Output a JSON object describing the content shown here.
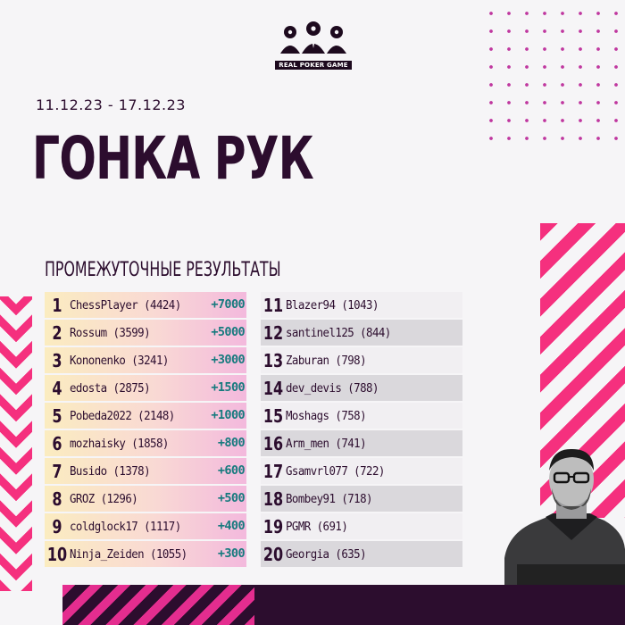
{
  "logo": {
    "text": "REAL POKER GAME"
  },
  "header": {
    "dates": "11.12.23 - 17.12.23",
    "title": "ГОНКА РУК"
  },
  "subtitle": "ПРОМЕЖУТОЧНЫЕ РЕЗУЛЬТАТЫ",
  "leaderboard_left": [
    {
      "rank": "1",
      "name": "ChessPlayer (4424)",
      "bonus": "+7000"
    },
    {
      "rank": "2",
      "name": "Rossum (3599)",
      "bonus": "+5000"
    },
    {
      "rank": "3",
      "name": "Kononenko (3241)",
      "bonus": "+3000"
    },
    {
      "rank": "4",
      "name": "edosta (2875)",
      "bonus": "+1500"
    },
    {
      "rank": "5",
      "name": "Pobeda2022 (2148)",
      "bonus": "+1000"
    },
    {
      "rank": "6",
      "name": "mozhaisky (1858)",
      "bonus": "+800"
    },
    {
      "rank": "7",
      "name": "Busido (1378)",
      "bonus": "+600"
    },
    {
      "rank": "8",
      "name": "GROZ (1296)",
      "bonus": "+500"
    },
    {
      "rank": "9",
      "name": "coldglock17 (1117)",
      "bonus": "+400"
    },
    {
      "rank": "10",
      "name": "Ninja_Zeiden (1055)",
      "bonus": "+300"
    }
  ],
  "leaderboard_right": [
    {
      "rank": "11",
      "name": "Blazer94 (1043)"
    },
    {
      "rank": "12",
      "name": "santinel125 (844)"
    },
    {
      "rank": "13",
      "name": "Zaburan (798)"
    },
    {
      "rank": "14",
      "name": "dev_devis (788)"
    },
    {
      "rank": "15",
      "name": "Moshags (758)"
    },
    {
      "rank": "16",
      "name": "Arm_men (741)"
    },
    {
      "rank": "17",
      "name": "Gsamvrl077 (722)"
    },
    {
      "rank": "18",
      "name": "Bombey91 (718)"
    },
    {
      "rank": "19",
      "name": "PGMR (691)"
    },
    {
      "rank": "20",
      "name": "Georgia (635)"
    }
  ],
  "colors": {
    "dark": "#2c0d2e",
    "accent_pink": "#f5307e",
    "dots": "#c0379f",
    "bonus_teal": "#167a7e"
  }
}
